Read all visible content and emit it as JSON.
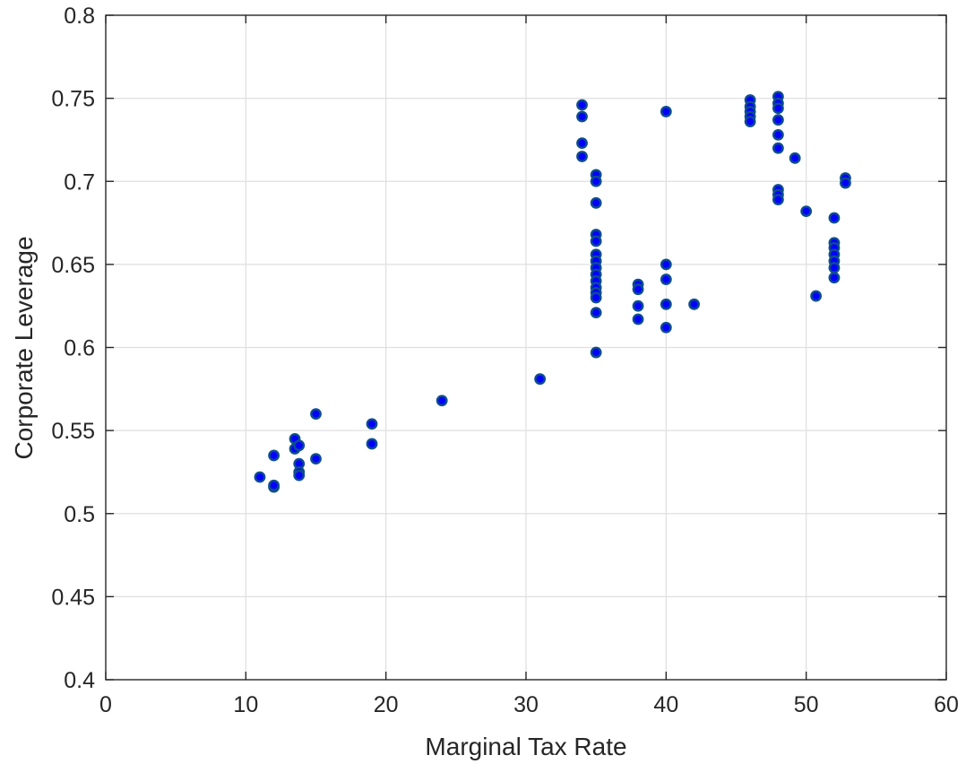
{
  "chart_data": {
    "type": "scatter",
    "title": "",
    "xlabel": "Marginal Tax Rate",
    "ylabel": "Corporate Leverage",
    "xlim": [
      0,
      60
    ],
    "ylim": [
      0.4,
      0.8
    ],
    "xticks": [
      0,
      10,
      20,
      30,
      40,
      50,
      60
    ],
    "xtick_labels": [
      "0",
      "10",
      "20",
      "30",
      "40",
      "50",
      "60"
    ],
    "yticks": [
      0.4,
      0.45,
      0.5,
      0.55,
      0.6,
      0.65,
      0.7,
      0.75,
      0.8
    ],
    "ytick_labels": [
      "0.4",
      "0.45",
      "0.5",
      "0.55",
      "0.6",
      "0.65",
      "0.7",
      "0.75",
      "0.8"
    ],
    "grid": true,
    "legend": false,
    "marker_fill": "#0000ff",
    "marker_edge": "#0e4e8c",
    "points": [
      [
        11.0,
        0.522
      ],
      [
        12.0,
        0.535
      ],
      [
        12.0,
        0.516
      ],
      [
        12.0,
        0.517
      ],
      [
        13.5,
        0.545
      ],
      [
        13.5,
        0.539
      ],
      [
        13.8,
        0.541
      ],
      [
        13.8,
        0.53
      ],
      [
        13.8,
        0.525
      ],
      [
        13.8,
        0.523
      ],
      [
        15.0,
        0.56
      ],
      [
        15.0,
        0.533
      ],
      [
        19.0,
        0.554
      ],
      [
        19.0,
        0.542
      ],
      [
        24.0,
        0.568
      ],
      [
        31.0,
        0.581
      ],
      [
        34.0,
        0.746
      ],
      [
        34.0,
        0.739
      ],
      [
        34.0,
        0.723
      ],
      [
        34.0,
        0.715
      ],
      [
        35.0,
        0.704
      ],
      [
        35.0,
        0.7
      ],
      [
        35.0,
        0.687
      ],
      [
        35.0,
        0.668
      ],
      [
        35.0,
        0.664
      ],
      [
        35.0,
        0.656
      ],
      [
        35.0,
        0.652
      ],
      [
        35.0,
        0.648
      ],
      [
        35.0,
        0.644
      ],
      [
        35.0,
        0.64
      ],
      [
        35.0,
        0.636
      ],
      [
        35.0,
        0.633
      ],
      [
        35.0,
        0.63
      ],
      [
        35.0,
        0.621
      ],
      [
        35.0,
        0.597
      ],
      [
        38.0,
        0.638
      ],
      [
        38.0,
        0.635
      ],
      [
        38.0,
        0.625
      ],
      [
        38.0,
        0.617
      ],
      [
        40.0,
        0.742
      ],
      [
        40.0,
        0.65
      ],
      [
        40.0,
        0.641
      ],
      [
        40.0,
        0.626
      ],
      [
        40.0,
        0.612
      ],
      [
        42.0,
        0.626
      ],
      [
        46.0,
        0.749
      ],
      [
        46.0,
        0.745
      ],
      [
        46.0,
        0.742
      ],
      [
        46.0,
        0.739
      ],
      [
        46.0,
        0.736
      ],
      [
        48.0,
        0.751
      ],
      [
        48.0,
        0.747
      ],
      [
        48.0,
        0.744
      ],
      [
        48.0,
        0.737
      ],
      [
        48.0,
        0.728
      ],
      [
        48.0,
        0.72
      ],
      [
        48.0,
        0.695
      ],
      [
        48.0,
        0.692
      ],
      [
        48.0,
        0.689
      ],
      [
        49.2,
        0.714
      ],
      [
        50.0,
        0.682
      ],
      [
        50.7,
        0.631
      ],
      [
        52.0,
        0.678
      ],
      [
        52.0,
        0.663
      ],
      [
        52.0,
        0.66
      ],
      [
        52.0,
        0.656
      ],
      [
        52.0,
        0.652
      ],
      [
        52.0,
        0.648
      ],
      [
        52.0,
        0.642
      ],
      [
        52.8,
        0.702
      ],
      [
        52.8,
        0.699
      ]
    ]
  }
}
